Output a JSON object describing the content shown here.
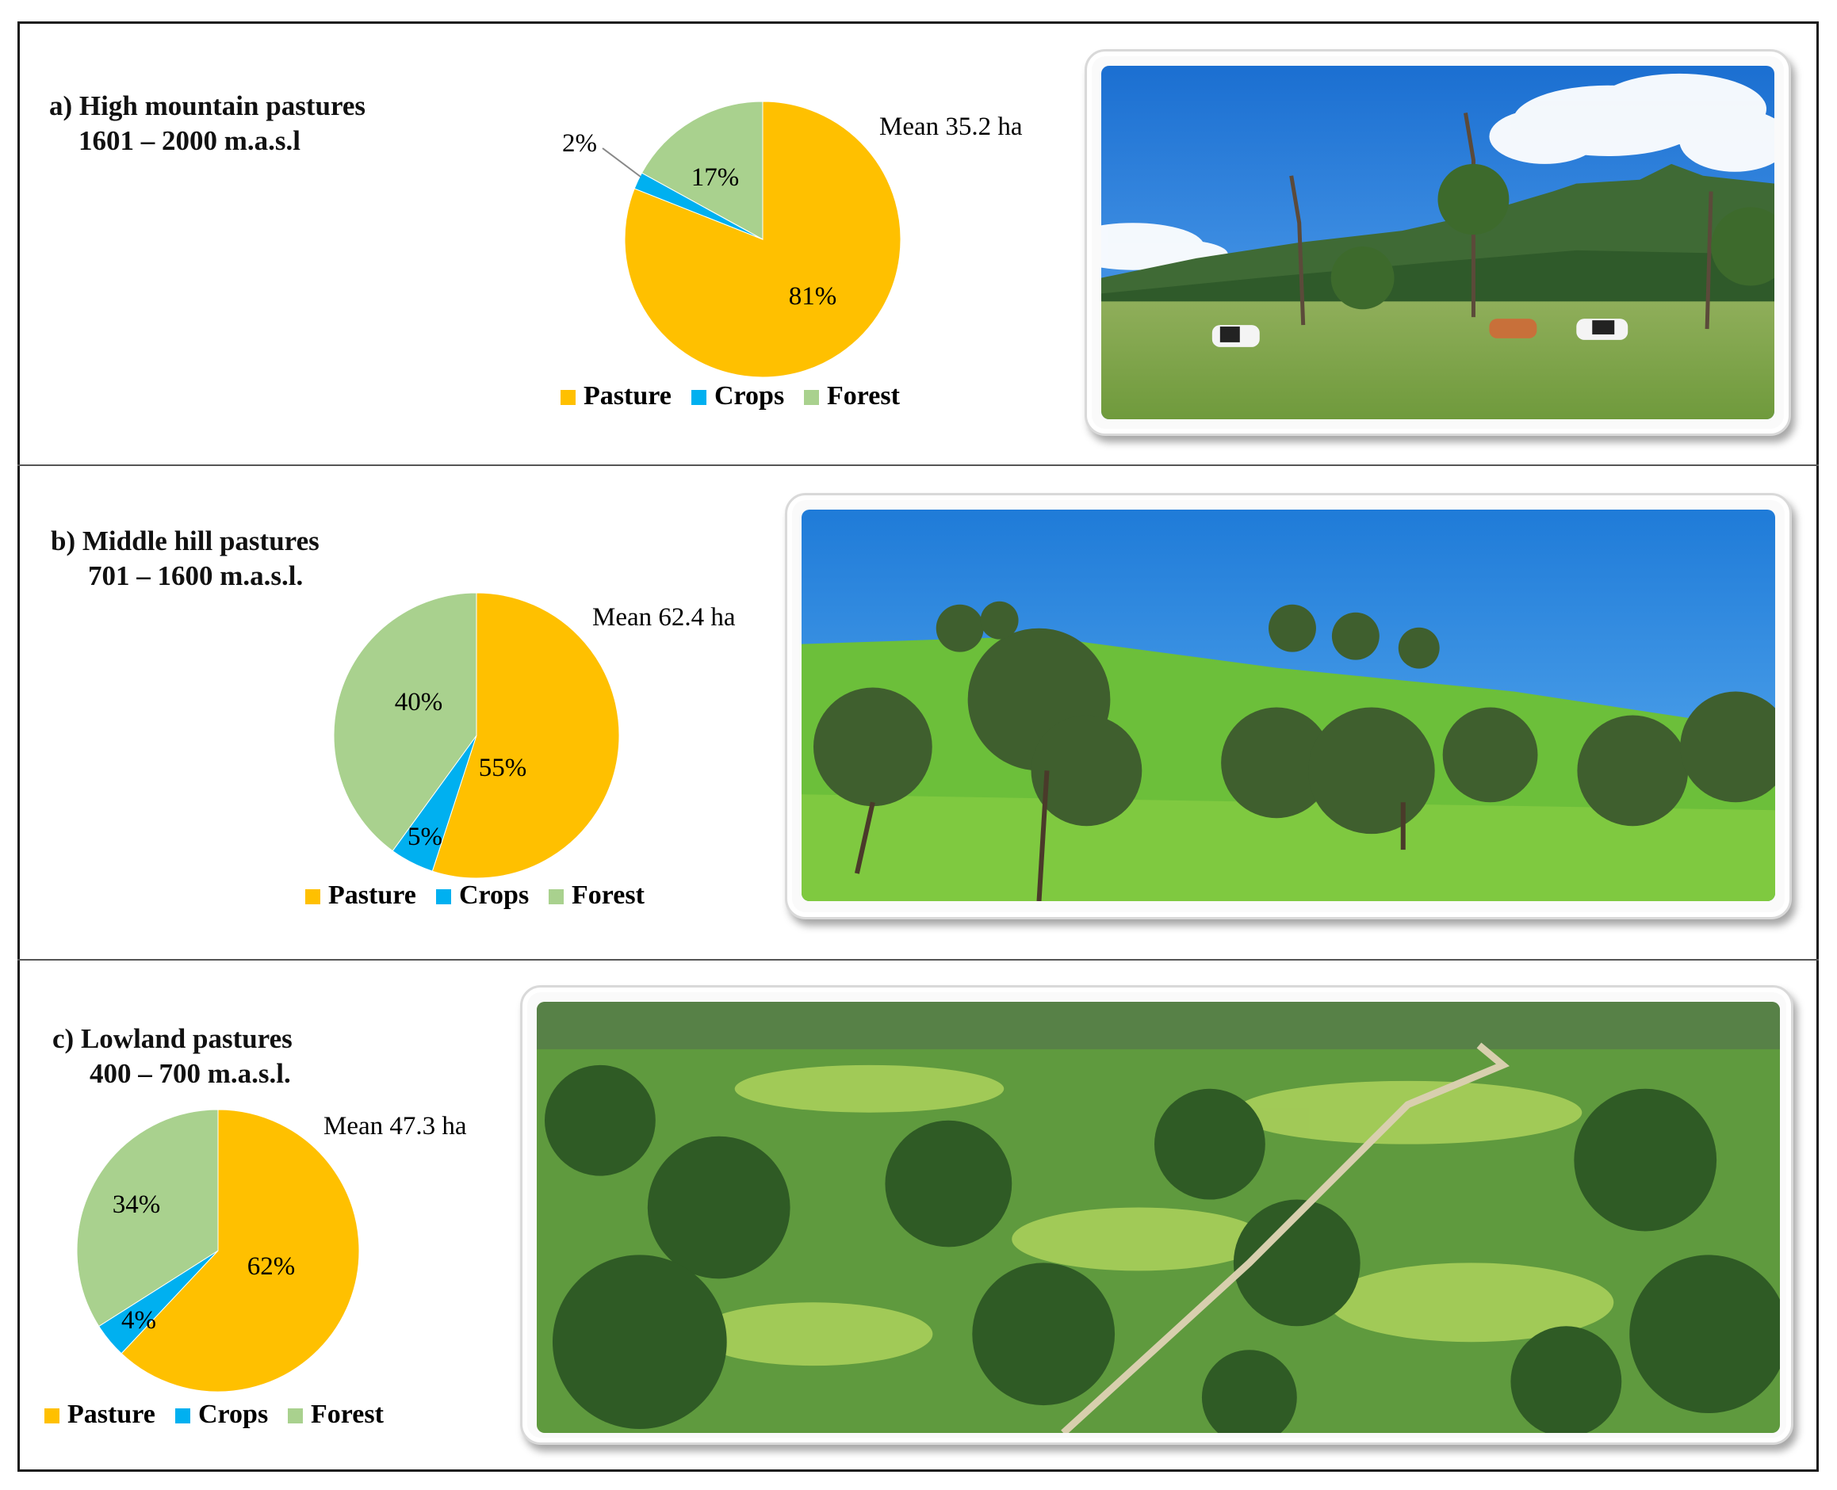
{
  "panels": [
    {
      "label": "a)",
      "title": "High mountain pastures",
      "elevation": "1601 – 2000 m.a.s.l",
      "mean": "Mean 35.2 ha"
    },
    {
      "label": "b)",
      "title": "Middle hill pastures",
      "elevation": "701 – 1600 m.a.s.l.",
      "mean": "Mean 62.4 ha"
    },
    {
      "label": "c)",
      "title": "Lowland pastures",
      "elevation": "400 – 700 m.a.s.l.",
      "mean": "Mean 47.3 ha"
    }
  ],
  "legend": [
    "Pasture",
    "Crops",
    "Forest"
  ],
  "colors": {
    "Pasture": "#FFC000",
    "Crops": "#00B0F0",
    "Forest": "#A9D18E"
  },
  "chart_data": [
    {
      "type": "pie",
      "title": "",
      "categories": [
        "Pasture",
        "Crops",
        "Forest"
      ],
      "values": [
        81,
        2,
        17
      ],
      "labels": [
        "81%",
        "2%",
        "17%"
      ],
      "legend_position": "bottom"
    },
    {
      "type": "pie",
      "title": "",
      "categories": [
        "Pasture",
        "Crops",
        "Forest"
      ],
      "values": [
        55,
        5,
        40
      ],
      "labels": [
        "55%",
        "5%",
        "40%"
      ],
      "legend_position": "bottom"
    },
    {
      "type": "pie",
      "title": "",
      "categories": [
        "Pasture",
        "Crops",
        "Forest"
      ],
      "values": [
        62,
        4,
        34
      ],
      "labels": [
        "62%",
        "4%",
        "34%"
      ],
      "legend_position": "bottom"
    }
  ]
}
